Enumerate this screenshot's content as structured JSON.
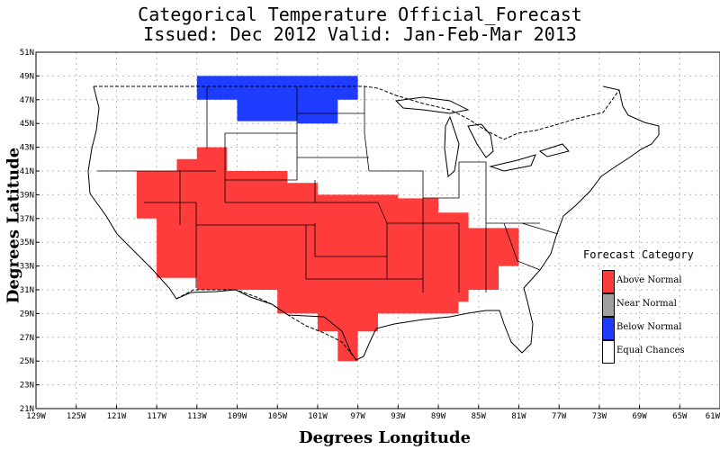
{
  "header": {
    "title_line1": "Categorical Temperature Official_Forecast",
    "title_line2": "Issued: Dec 2012 Valid: Jan-Feb-Mar 2013"
  },
  "axes": {
    "xlabel": "Degrees Longitude",
    "ylabel": "Degrees Latitude",
    "lon_range": [
      -129,
      -61
    ],
    "lat_range": [
      21,
      51
    ],
    "x_ticks": [
      "129W",
      "125W",
      "121W",
      "117W",
      "113W",
      "109W",
      "105W",
      "101W",
      "97W",
      "93W",
      "89W",
      "85W",
      "81W",
      "77W",
      "73W",
      "69W",
      "65W",
      "61W"
    ],
    "y_ticks": [
      "51N",
      "49N",
      "47N",
      "45N",
      "43N",
      "41N",
      "39N",
      "37N",
      "35N",
      "33N",
      "31N",
      "29N",
      "27N",
      "25N",
      "23N",
      "21N"
    ]
  },
  "legend": {
    "title": "Forecast Category",
    "items": [
      {
        "label": "Above Normal",
        "color": "#ff3c3c"
      },
      {
        "label": "Near Normal",
        "color": "#a0a0a0"
      },
      {
        "label": "Below Normal",
        "color": "#1e3cff"
      },
      {
        "label": "Equal Chances",
        "color": "#ffffff"
      }
    ]
  },
  "map_regions": {
    "above_normal_lonlat": [
      [
        -119,
        41
      ],
      [
        -115,
        41
      ],
      [
        -115,
        42
      ],
      [
        -113,
        42
      ],
      [
        -113,
        43
      ],
      [
        -110,
        43
      ],
      [
        -110,
        41
      ],
      [
        -104,
        41
      ],
      [
        -104,
        40
      ],
      [
        -101,
        40
      ],
      [
        -101,
        39
      ],
      [
        -93,
        39
      ],
      [
        -93,
        38.7
      ],
      [
        -89,
        38.7
      ],
      [
        -89,
        37.5
      ],
      [
        -86,
        37.5
      ],
      [
        -86,
        36.2
      ],
      [
        -81,
        36.2
      ],
      [
        -81,
        33
      ],
      [
        -83,
        33
      ],
      [
        -83,
        31
      ],
      [
        -86,
        31
      ],
      [
        -86,
        30
      ],
      [
        -87,
        30
      ],
      [
        -87,
        29
      ],
      [
        -95,
        29
      ],
      [
        -95,
        27.5
      ],
      [
        -97,
        27.5
      ],
      [
        -97,
        25
      ],
      [
        -99,
        25
      ],
      [
        -99,
        27.5
      ],
      [
        -101,
        27.5
      ],
      [
        -101,
        29
      ],
      [
        -105,
        29
      ],
      [
        -105,
        31
      ],
      [
        -113,
        31
      ],
      [
        -113,
        32
      ],
      [
        -117,
        32
      ],
      [
        -117,
        37
      ],
      [
        -119,
        37
      ]
    ],
    "below_normal_lonlat": [
      [
        -113,
        49
      ],
      [
        -97,
        49
      ],
      [
        -97,
        47
      ],
      [
        -99,
        47
      ],
      [
        -99,
        45
      ],
      [
        -103,
        45
      ],
      [
        -103,
        45.2
      ],
      [
        -109,
        45.2
      ],
      [
        -109,
        47
      ],
      [
        -113,
        47
      ]
    ]
  }
}
